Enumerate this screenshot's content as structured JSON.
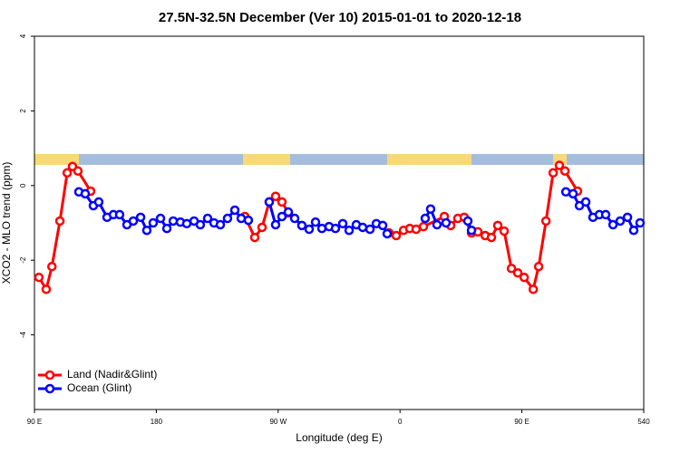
{
  "chart_data": {
    "type": "line",
    "title": "27.5N-32.5N December (Ver 10)   2015-01-01 to 2020-12-18",
    "x_label": "Longitude (deg E)",
    "y_label": "XCO2 - MLO trend (ppm)",
    "xlim": [
      90,
      540
    ],
    "xticks": [
      {
        "value": 90,
        "label": "90 E"
      },
      180,
      {
        "value": 270,
        "label": "90 W"
      },
      {
        "value": 360,
        "label": "0"
      },
      {
        "value": 450,
        "label": "90 E"
      },
      540
    ],
    "ylim": [
      -6,
      4
    ],
    "yticks": [
      -4,
      -2,
      0,
      2,
      4
    ],
    "legend": "bottomleft",
    "series": [
      {
        "name": "Land (Nadir&Glint)",
        "color": "#ff0000",
        "x": [
          93.3,
          98.7,
          102.9,
          108.8,
          114.2,
          118.1,
          122.1,
          131.5,
          null,
          245.4,
          252.7,
          258.1,
          263.4,
          268.1,
          272.8,
          277.5,
          null,
          351.8,
          357.2,
          362.6,
          367.2,
          371.9,
          377.3,
          392.7,
          397.4,
          402.7,
          407.4,
          412.8,
          417.5,
          422.9,
          427.5,
          432.2,
          436.9,
          442.3,
          447.0,
          451.7,
          458.4,
          462.4,
          467.8,
          473.1,
          477.7,
          481.8,
          491.1
        ],
        "values": [
          -2.46,
          -2.78,
          -2.17,
          -0.95,
          0.34,
          0.51,
          0.39,
          -0.15,
          null,
          -0.83,
          -1.39,
          -1.12,
          -0.44,
          -0.29,
          -0.44,
          -0.73,
          null,
          -1.27,
          -1.34,
          -1.2,
          -1.15,
          -1.17,
          -1.1,
          -0.83,
          -1.07,
          -0.88,
          -0.85,
          -1.27,
          -1.24,
          -1.34,
          -1.39,
          -1.07,
          -1.22,
          -2.22,
          -2.34,
          -2.46,
          -2.78,
          -2.17,
          -0.95,
          0.34,
          0.54,
          0.39,
          -0.15
        ]
      },
      {
        "name": "Ocean (Glint)",
        "color": "#0000ff",
        "x": [
          122.8,
          127.5,
          133.5,
          137.5,
          143.6,
          148.3,
          152.9,
          158.3,
          163.0,
          168.4,
          173.0,
          177.7,
          183.1,
          187.8,
          192.5,
          197.8,
          202.5,
          207.9,
          212.5,
          217.9,
          222.6,
          227.3,
          232.6,
          238.0,
          242.7,
          248.0,
          null,
          263.4,
          268.1,
          272.8,
          277.5,
          282.2,
          287.5,
          292.9,
          297.6,
          302.3,
          307.6,
          312.3,
          317.7,
          322.4,
          327.7,
          332.4,
          337.8,
          342.5,
          347.2,
          350.5,
          null,
          378.6,
          382.6,
          387.3,
          394.0,
          null,
          410.1,
          412.8,
          null,
          482.5,
          487.8,
          492.5,
          497.2,
          502.5,
          507.2,
          511.9,
          517.3,
          522.6,
          528.0,
          532.6,
          537.3
        ],
        "values": [
          -0.17,
          -0.22,
          -0.54,
          -0.44,
          -0.85,
          -0.78,
          -0.78,
          -1.05,
          -0.95,
          -0.85,
          -1.2,
          -1.0,
          -0.88,
          -1.15,
          -0.95,
          -0.98,
          -1.02,
          -0.95,
          -1.05,
          -0.88,
          -1.0,
          -1.05,
          -0.88,
          -0.66,
          -0.88,
          -0.93,
          null,
          -0.44,
          -1.05,
          -0.83,
          -0.71,
          -0.88,
          -1.07,
          -1.17,
          -0.98,
          -1.15,
          -1.1,
          -1.15,
          -1.02,
          -1.2,
          -1.05,
          -1.12,
          -1.17,
          -1.02,
          -1.07,
          -1.29,
          null,
          -0.88,
          -0.63,
          -1.05,
          -1.0,
          null,
          -0.95,
          -1.2,
          null,
          -0.17,
          -0.22,
          -0.54,
          -0.44,
          -0.85,
          -0.78,
          -0.78,
          -1.05,
          -0.95,
          -0.85,
          -1.2,
          -1.0
        ]
      }
    ]
  }
}
